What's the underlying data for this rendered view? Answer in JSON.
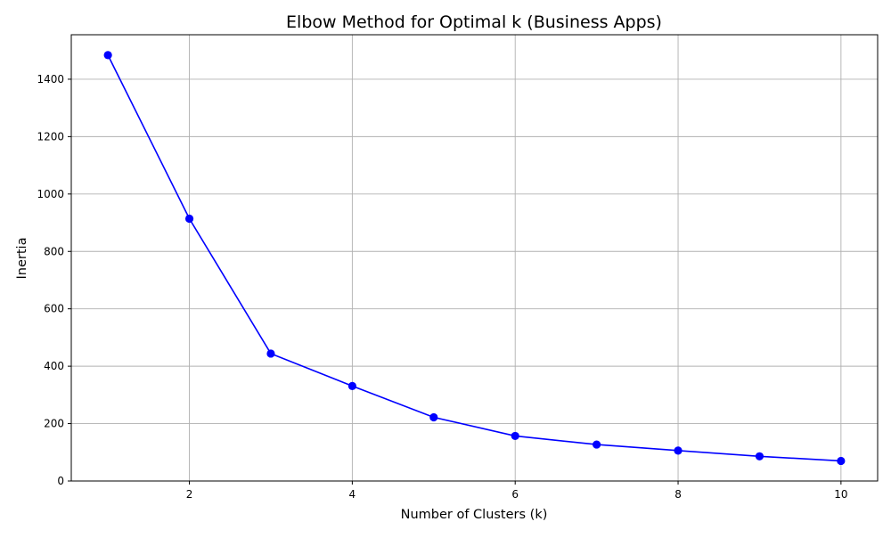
{
  "chart_data": {
    "type": "line",
    "title": "Elbow Method for Optimal k (Business Apps)",
    "xlabel": "Number of Clusters (k)",
    "ylabel": "Inertia",
    "x": [
      1,
      2,
      3,
      4,
      5,
      6,
      7,
      8,
      9,
      10
    ],
    "series": [
      {
        "values": [
          1484,
          914,
          444,
          331,
          222,
          157,
          127,
          106,
          86,
          70
        ],
        "color": "#0000ff",
        "marker": "circle"
      }
    ],
    "xlim": [
      0.55,
      10.45
    ],
    "ylim": [
      0,
      1555
    ],
    "xticks": [
      2,
      4,
      6,
      8,
      10
    ],
    "yticks": [
      0,
      200,
      400,
      600,
      800,
      1000,
      1200,
      1400
    ],
    "grid": true,
    "legend": "none"
  }
}
